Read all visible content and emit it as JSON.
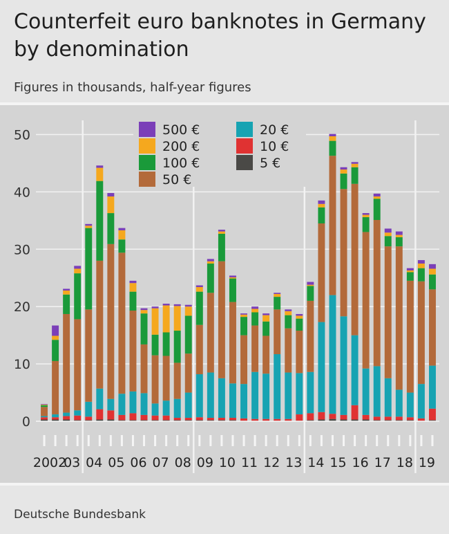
{
  "title": "Counterfeit euro banknotes in Germany by denomination",
  "subtitle": "Figures in thousands, half-year figures",
  "source": "Deutsche Bundesbank",
  "colors": {
    "5 €": "#4a4946",
    "10 €": "#e03232",
    "20 €": "#17a3b2",
    "50 €": "#b36a3a",
    "100 €": "#1a9a3a",
    "200 €": "#f5a81e",
    "500 €": "#7b3fb8"
  },
  "chart_data": {
    "type": "bar",
    "stacked": true,
    "ylim": [
      0,
      52
    ],
    "yticks": [
      0,
      10,
      20,
      30,
      40,
      50
    ],
    "year_labels": [
      "2002",
      "03",
      "04",
      "05",
      "06",
      "07",
      "08",
      "09",
      "10",
      "11",
      "12",
      "13",
      "14",
      "15",
      "16",
      "17",
      "18",
      "19"
    ],
    "categories": [
      "2002 H1",
      "2002 H2",
      "2003 H1",
      "2003 H2",
      "2004 H1",
      "2004 H2",
      "2005 H1",
      "2005 H2",
      "2006 H1",
      "2006 H2",
      "2007 H1",
      "2007 H2",
      "2008 H1",
      "2008 H2",
      "2009 H1",
      "2009 H2",
      "2010 H1",
      "2010 H2",
      "2011 H1",
      "2011 H2",
      "2012 H1",
      "2012 H2",
      "2013 H1",
      "2013 H2",
      "2014 H1",
      "2014 H2",
      "2015 H1",
      "2015 H2",
      "2016 H1",
      "2016 H2",
      "2017 H1",
      "2017 H2",
      "2018 H1",
      "2018 H2",
      "2019 H1",
      "2019 H2"
    ],
    "legend": [
      "500 €",
      "200 €",
      "100 €",
      "50 €",
      "20 €",
      "10 €",
      "5 €"
    ],
    "series": [
      {
        "name": "5 €",
        "values": [
          0.3,
          0.3,
          0.3,
          0.2,
          0.2,
          0.3,
          0.3,
          0.2,
          0.2,
          0.2,
          0.2,
          0.2,
          0.2,
          0.2,
          0.2,
          0.2,
          0.2,
          0.2,
          0.1,
          0.1,
          0.1,
          0.1,
          0.1,
          0.1,
          0.2,
          0.3,
          0.4,
          0.3,
          0.3,
          0.3,
          0.2,
          0.2,
          0.2,
          0.2,
          0.1,
          0.2
        ]
      },
      {
        "name": "10 €",
        "values": [
          0.4,
          0.4,
          0.6,
          0.8,
          0.6,
          1.8,
          1.6,
          0.9,
          1.2,
          0.9,
          0.8,
          0.8,
          0.4,
          0.4,
          0.5,
          0.4,
          0.4,
          0.4,
          0.4,
          0.3,
          0.3,
          0.3,
          0.3,
          1.1,
          1.2,
          1.3,
          0.9,
          0.8,
          2.5,
          0.8,
          0.6,
          0.6,
          0.6,
          0.5,
          0.4,
          2.0
        ]
      },
      {
        "name": "20 €",
        "values": [
          0.2,
          0.5,
          0.6,
          0.9,
          2.6,
          3.6,
          2.0,
          3.7,
          3.8,
          3.8,
          2.1,
          2.6,
          3.3,
          4.4,
          7.5,
          7.9,
          6.9,
          6.0,
          6.0,
          8.2,
          7.9,
          11.3,
          8.1,
          7.2,
          7.2,
          15.7,
          20.7,
          17.2,
          12.2,
          8.1,
          8.8,
          6.7,
          4.7,
          4.3,
          6.0,
          7.5
        ]
      },
      {
        "name": "50 €",
        "values": [
          1.6,
          9.3,
          17.2,
          15.9,
          16.1,
          22.3,
          27.0,
          24.6,
          14.1,
          8.5,
          8.4,
          7.8,
          6.3,
          6.8,
          8.6,
          13.9,
          20.4,
          14.2,
          8.5,
          8.1,
          6.6,
          7.8,
          7.7,
          7.4,
          12.4,
          17.2,
          24.3,
          22.2,
          26.4,
          23.8,
          25.5,
          23.0,
          25.0,
          19.5,
          17.9,
          13.3
        ]
      },
      {
        "name": "100 €",
        "values": [
          0.3,
          3.7,
          3.4,
          8.0,
          14.2,
          13.9,
          5.4,
          2.3,
          3.3,
          5.4,
          3.6,
          4.1,
          5.6,
          6.6,
          5.8,
          5.1,
          4.8,
          4.1,
          3.2,
          2.3,
          2.5,
          2.2,
          2.3,
          2.1,
          2.6,
          2.8,
          2.6,
          2.7,
          2.9,
          2.6,
          3.7,
          1.8,
          1.6,
          1.5,
          2.3,
          2.6
        ]
      },
      {
        "name": "200 €",
        "values": [
          0.1,
          0.7,
          0.7,
          0.8,
          0.4,
          2.3,
          2.9,
          1.6,
          1.5,
          0.6,
          4.6,
          4.7,
          4.3,
          1.6,
          0.8,
          0.4,
          0.4,
          0.2,
          0.4,
          0.6,
          1.1,
          0.5,
          0.7,
          0.5,
          0.2,
          0.6,
          0.8,
          0.7,
          0.6,
          0.4,
          0.4,
          0.6,
          0.4,
          0.3,
          0.8,
          1.0
        ]
      },
      {
        "name": "500 €",
        "values": [
          0.1,
          1.8,
          0.3,
          0.5,
          0.3,
          0.4,
          0.6,
          0.4,
          0.4,
          0.3,
          0.3,
          0.3,
          0.3,
          0.3,
          0.3,
          0.4,
          0.3,
          0.3,
          0.2,
          0.4,
          0.3,
          0.2,
          0.3,
          0.3,
          0.5,
          0.6,
          0.4,
          0.4,
          0.3,
          0.3,
          0.5,
          0.7,
          0.6,
          0.4,
          0.6,
          0.8
        ]
      }
    ]
  }
}
